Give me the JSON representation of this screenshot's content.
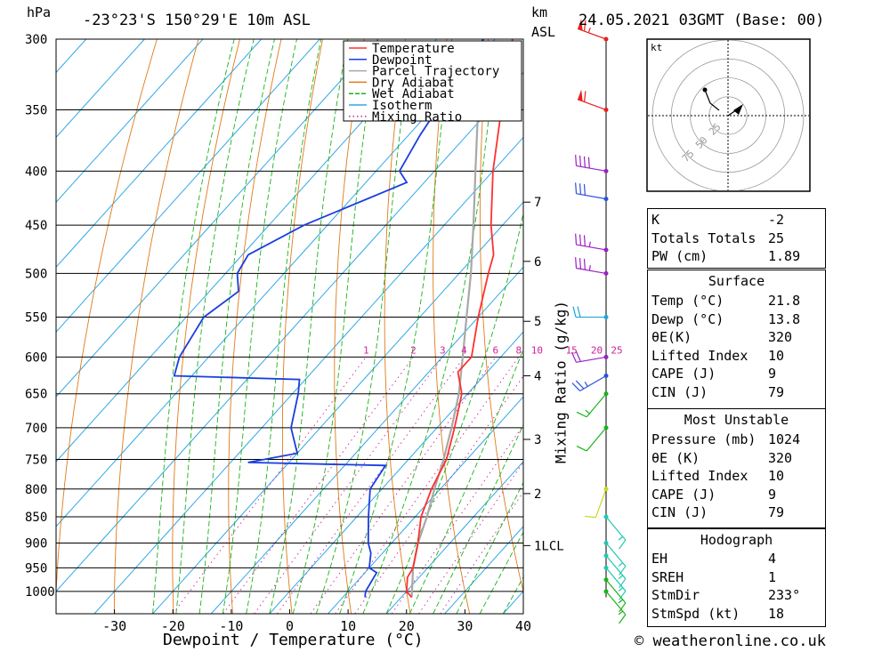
{
  "header": {
    "unit_left": "hPa",
    "location": "-23°23'S 150°29'E 10m ASL",
    "unit_right_1": "km",
    "unit_right_2": "ASL",
    "datetime": "24.05.2021 03GMT (Base: 00)"
  },
  "footer": {
    "copyright": "© weatheronline.co.uk"
  },
  "colors": {
    "temperature": "#ff3030",
    "dewpoint": "#1a3ee0",
    "parcel": "#a8a8a8",
    "dry_adiabat": "#e07a1a",
    "wet_adiabat": "#18b418",
    "isotherm": "#2ea8e8",
    "mixing_ratio": "#d0209a"
  },
  "chart_data": {
    "type": "line",
    "title": "-23°23'S 150°29'E 10m ASL",
    "xlabel": "Dewpoint / Temperature (°C)",
    "ylabel": "hPa",
    "y2label": "Mixing Ratio (g/kg)",
    "xlim": [
      -40,
      40
    ],
    "ylim": [
      1050,
      300
    ],
    "y_scale": "log",
    "x_ticks": [
      -30,
      -20,
      -10,
      0,
      10,
      20,
      30,
      40
    ],
    "pressure_levels": [
      300,
      350,
      400,
      450,
      500,
      550,
      600,
      650,
      700,
      750,
      800,
      850,
      900,
      950,
      1000
    ],
    "km_ticks": [
      {
        "label": "7",
        "p": 428
      },
      {
        "label": "6",
        "p": 487
      },
      {
        "label": "5",
        "p": 555
      },
      {
        "label": "4",
        "p": 625
      },
      {
        "label": "3",
        "p": 718
      },
      {
        "label": "2",
        "p": 808
      },
      {
        "label": "1LCL",
        "p": 905
      }
    ],
    "mixing_ratio_labels": [
      "1",
      "2",
      "3",
      "4",
      "6",
      "8",
      "10",
      "15",
      "20",
      "25"
    ],
    "mixing_ratio_values": [
      1,
      2,
      3,
      4,
      6,
      8,
      10,
      15,
      20,
      25
    ],
    "legend": [
      "Temperature",
      "Dewpoint",
      "Parcel Trajectory",
      "Dry Adiabat",
      "Wet Adiabat",
      "Isotherm",
      "Mixing Ratio"
    ],
    "legend_position": "top-right",
    "series": [
      {
        "name": "Temperature",
        "points": [
          [
            1013,
            21.8
          ],
          [
            1000,
            20
          ],
          [
            970,
            18
          ],
          [
            950,
            17.5
          ],
          [
            900,
            14.5
          ],
          [
            850,
            11
          ],
          [
            800,
            8.5
          ],
          [
            750,
            6.5
          ],
          [
            700,
            3
          ],
          [
            650,
            -1
          ],
          [
            620,
            -5
          ],
          [
            600,
            -5
          ],
          [
            550,
            -10
          ],
          [
            500,
            -15
          ],
          [
            480,
            -17
          ],
          [
            450,
            -22
          ],
          [
            400,
            -30
          ],
          [
            350,
            -38
          ],
          [
            300,
            -47
          ]
        ]
      },
      {
        "name": "Dewpoint",
        "points": [
          [
            1013,
            13.8
          ],
          [
            1000,
            13
          ],
          [
            960,
            12
          ],
          [
            950,
            10
          ],
          [
            920,
            8
          ],
          [
            900,
            6
          ],
          [
            850,
            2
          ],
          [
            800,
            -2
          ],
          [
            760,
            -3
          ],
          [
            755,
            -27
          ],
          [
            740,
            -20
          ],
          [
            700,
            -25
          ],
          [
            650,
            -29
          ],
          [
            630,
            -31
          ],
          [
            625,
            -53
          ],
          [
            600,
            -55
          ],
          [
            550,
            -57
          ],
          [
            520,
            -55
          ],
          [
            500,
            -58
          ],
          [
            480,
            -59
          ],
          [
            450,
            -54
          ],
          [
            410,
            -43
          ],
          [
            400,
            -46
          ],
          [
            370,
            -48
          ],
          [
            300,
            -52
          ]
        ]
      },
      {
        "name": "Parcel Trajectory",
        "points": [
          [
            1013,
            21.8
          ],
          [
            950,
            17.5
          ],
          [
            900,
            14.5
          ],
          [
            850,
            12
          ],
          [
            800,
            9
          ],
          [
            750,
            6
          ],
          [
            700,
            2.5
          ],
          [
            650,
            -1.5
          ],
          [
            600,
            -6.5
          ],
          [
            550,
            -12
          ],
          [
            500,
            -18
          ],
          [
            450,
            -25
          ],
          [
            400,
            -33
          ],
          [
            350,
            -42
          ],
          [
            300,
            -52
          ]
        ]
      }
    ],
    "hodograph": {
      "unit": "kt",
      "ring_labels": [
        "25",
        "50",
        "75"
      ]
    },
    "wind_barbs": [
      {
        "p": 300,
        "color": "#e82020",
        "dir": 290,
        "kt": 65
      },
      {
        "p": 350,
        "color": "#e82020",
        "dir": 290,
        "kt": 60
      },
      {
        "p": 400,
        "color": "#9a20c8",
        "dir": 280,
        "kt": 40
      },
      {
        "p": 425,
        "color": "#2a50e0",
        "dir": 280,
        "kt": 30
      },
      {
        "p": 475,
        "color": "#9a20c8",
        "dir": 280,
        "kt": 35
      },
      {
        "p": 500,
        "color": "#9a20c8",
        "dir": 280,
        "kt": 35
      },
      {
        "p": 550,
        "color": "#20a8d8",
        "dir": 270,
        "kt": 20
      },
      {
        "p": 600,
        "color": "#9a20c8",
        "dir": 260,
        "kt": 20
      },
      {
        "p": 625,
        "color": "#2a50e0",
        "dir": 240,
        "kt": 25
      },
      {
        "p": 650,
        "color": "#18b418",
        "dir": 220,
        "kt": 15
      },
      {
        "p": 700,
        "color": "#18b418",
        "dir": 220,
        "kt": 10
      },
      {
        "p": 800,
        "color": "#c8d820",
        "dir": 200,
        "kt": 10
      },
      {
        "p": 850,
        "color": "#20c8b0",
        "dir": 140,
        "kt": 15
      },
      {
        "p": 900,
        "color": "#20c8b0",
        "dir": 140,
        "kt": 15
      },
      {
        "p": 925,
        "color": "#20c8b0",
        "dir": 140,
        "kt": 15
      },
      {
        "p": 950,
        "color": "#20c8b0",
        "dir": 140,
        "kt": 15
      },
      {
        "p": 975,
        "color": "#18b418",
        "dir": 140,
        "kt": 15
      },
      {
        "p": 1000,
        "color": "#18b418",
        "dir": 140,
        "kt": 15
      }
    ]
  },
  "indices": {
    "basic": [
      {
        "label": "K",
        "value": "-2"
      },
      {
        "label": "Totals Totals",
        "value": "25"
      },
      {
        "label": "PW (cm)",
        "value": "1.89"
      }
    ],
    "surface": {
      "title": "Surface",
      "rows": [
        {
          "label": "Temp (°C)",
          "value": "21.8"
        },
        {
          "label": "Dewp (°C)",
          "value": "13.8"
        },
        {
          "label": "θE(K)",
          "value": "320"
        },
        {
          "label": "Lifted Index",
          "value": "10"
        },
        {
          "label": "CAPE (J)",
          "value": "9"
        },
        {
          "label": "CIN (J)",
          "value": "79"
        }
      ]
    },
    "most_unstable": {
      "title": "Most Unstable",
      "rows": [
        {
          "label": "Pressure (mb)",
          "value": "1024"
        },
        {
          "label": "θE (K)",
          "value": "320"
        },
        {
          "label": "Lifted Index",
          "value": "10"
        },
        {
          "label": "CAPE (J)",
          "value": "9"
        },
        {
          "label": "CIN (J)",
          "value": "79"
        }
      ]
    },
    "hodograph": {
      "title": "Hodograph",
      "rows": [
        {
          "label": "EH",
          "value": "4"
        },
        {
          "label": "SREH",
          "value": "1"
        },
        {
          "label": "StmDir",
          "value": "233°"
        },
        {
          "label": "StmSpd (kt)",
          "value": "18"
        }
      ]
    }
  }
}
